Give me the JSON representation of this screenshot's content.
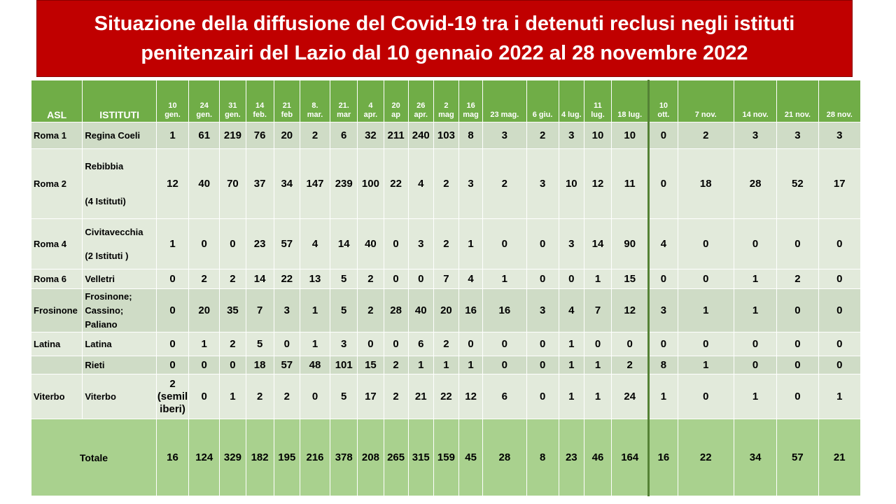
{
  "title": {
    "line1": "Situazione della diffusione del Covid-19 tra i detenuti reclusi negli istituti",
    "line2": "penitenzairi  del Lazio dal 10 gennaio 2022 al 28 novembre 2022"
  },
  "table": {
    "headers": {
      "asl": "ASL",
      "istituti": "ISTITUTI",
      "dates": [
        [
          "10",
          "gen."
        ],
        [
          "24",
          "gen."
        ],
        [
          "31",
          "gen."
        ],
        [
          "14",
          "feb."
        ],
        [
          "21",
          "feb"
        ],
        [
          "8.",
          "mar."
        ],
        [
          "21.",
          "mar"
        ],
        [
          "4",
          "apr."
        ],
        [
          "20",
          "ap"
        ],
        [
          "26",
          "apr."
        ],
        [
          "2",
          "mag"
        ],
        [
          "16",
          "mag"
        ],
        [
          "23 mag."
        ],
        [
          "6 giu."
        ],
        [
          "4 lug."
        ],
        [
          "11",
          "lug."
        ],
        [
          "18 lug."
        ],
        [
          "10",
          "ott."
        ],
        [
          "7 nov."
        ],
        [
          "14 nov."
        ],
        [
          "21 nov."
        ],
        [
          "28 nov."
        ]
      ]
    },
    "rows": [
      {
        "asl": "Roma 1",
        "istituto": [
          "Regina Coeli"
        ],
        "values": [
          "1",
          "61",
          "219",
          "76",
          "20",
          "2",
          "6",
          "32",
          "211",
          "240",
          "103",
          "8",
          "3",
          "2",
          "3",
          "10",
          "10",
          "0",
          "2",
          "3",
          "3",
          "3"
        ]
      },
      {
        "asl": "Roma 2",
        "istituto": [
          "Rebibbia",
          "(4 Istituti)"
        ],
        "values": [
          "12",
          "40",
          "70",
          "37",
          "34",
          "147",
          "239",
          "100",
          "22",
          "4",
          "2",
          "3",
          "2",
          "3",
          "10",
          "12",
          "11",
          "0",
          "18",
          "28",
          "52",
          "17"
        ]
      },
      {
        "asl": "Roma 4",
        "istituto": [
          "Civitavecchia",
          "(2 Istituti )"
        ],
        "values": [
          "1",
          "0",
          "0",
          "23",
          "57",
          "4",
          "14",
          "40",
          "0",
          "3",
          "2",
          "1",
          "0",
          "0",
          "3",
          "14",
          "90",
          "4",
          "0",
          "0",
          "0",
          "0"
        ]
      },
      {
        "asl": "Roma 6",
        "istituto": [
          "Velletri"
        ],
        "values": [
          "0",
          "2",
          "2",
          "14",
          "22",
          "13",
          "5",
          "2",
          "0",
          "0",
          "7",
          "4",
          "1",
          "0",
          "0",
          "1",
          "15",
          "0",
          "0",
          "1",
          "2",
          "0"
        ]
      },
      {
        "asl": "Frosinone",
        "istituto": [
          "Frosinone;",
          "Cassino;",
          "Paliano"
        ],
        "values": [
          "0",
          "20",
          "35",
          "7",
          "3",
          "1",
          "5",
          "2",
          "28",
          "40",
          "20",
          "16",
          "16",
          "3",
          "4",
          "7",
          "12",
          "3",
          "1",
          "1",
          "0",
          "0"
        ]
      },
      {
        "asl": "Latina",
        "istituto": [
          "Latina"
        ],
        "values": [
          "0",
          "1",
          "2",
          "5",
          "0",
          "1",
          "3",
          "0",
          "0",
          "6",
          "2",
          "0",
          "0",
          "0",
          "1",
          "0",
          "0",
          "0",
          "0",
          "0",
          "0",
          "0"
        ]
      },
      {
        "asl": "",
        "istituto": [
          "Rieti"
        ],
        "values": [
          "0",
          "0",
          "0",
          "18",
          "57",
          "48",
          "101",
          "15",
          "2",
          "1",
          "1",
          "1",
          "0",
          "0",
          "1",
          "1",
          "2",
          "8",
          "1",
          "0",
          "0",
          "0"
        ]
      },
      {
        "asl": "Viterbo",
        "istituto": [
          "Viterbo"
        ],
        "values": [
          "2 (semil iberi)",
          "0",
          "1",
          "2",
          "2",
          "0",
          "5",
          "17",
          "2",
          "21",
          "22",
          "12",
          "6",
          "0",
          "1",
          "1",
          "24",
          "1",
          "0",
          "1",
          "0",
          "1"
        ]
      }
    ],
    "total": {
      "label": "Totale",
      "values": [
        "16",
        "124",
        "329",
        "182",
        "195",
        "216",
        "378",
        "208",
        "265",
        "315",
        "159",
        "45",
        "28",
        "8",
        "23",
        "46",
        "164",
        "16",
        "22",
        "34",
        "57",
        "21"
      ]
    }
  },
  "colors": {
    "title_bg": "#c00000",
    "header_bg": "#70ad47",
    "row_light": "#e2eadb",
    "row_dark": "#cfdcc6",
    "total_bg": "#a9d18e"
  }
}
